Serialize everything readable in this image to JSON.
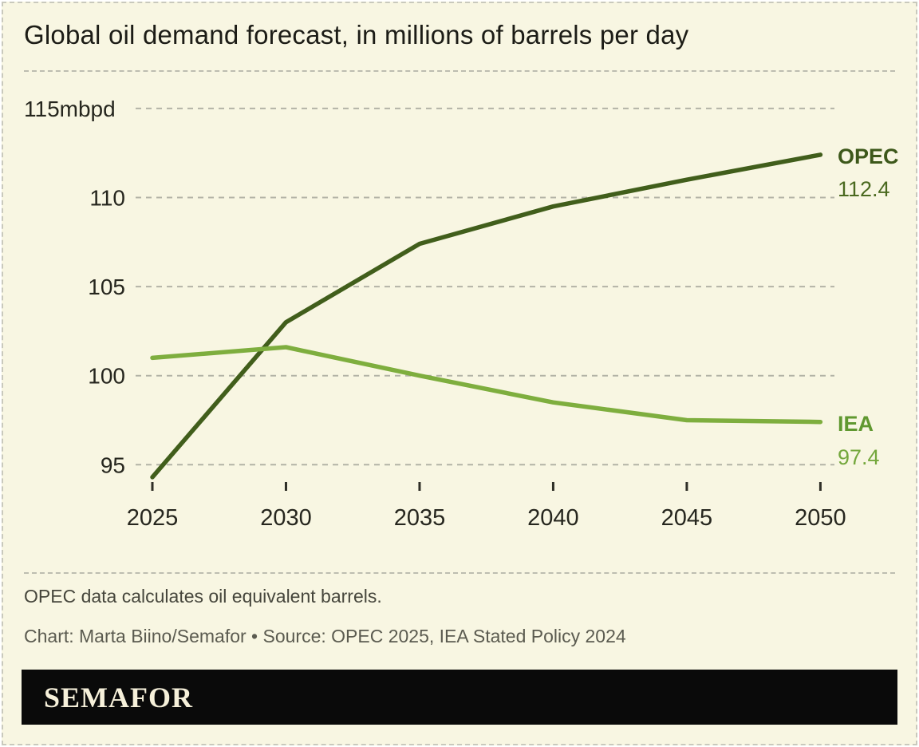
{
  "title": "Global oil demand forecast, in millions of barrels per day",
  "chart_data": {
    "type": "line",
    "title": "Global oil demand forecast, in millions of barrels per day",
    "xlabel": "",
    "ylabel": "mbpd",
    "x": [
      2025,
      2030,
      2035,
      2040,
      2045,
      2050
    ],
    "x_tick_labels": [
      "2025",
      "2030",
      "2035",
      "2040",
      "2045",
      "2050"
    ],
    "xlim": [
      2025,
      2050
    ],
    "ylim": [
      93.5,
      116.5
    ],
    "y_ticks": [
      {
        "value": 115,
        "label": "115mbpd"
      },
      {
        "value": 110,
        "label": "110"
      },
      {
        "value": 105,
        "label": "105"
      },
      {
        "value": 100,
        "label": "100"
      },
      {
        "value": 95,
        "label": "95"
      }
    ],
    "grid": "horizontal-dashed",
    "legend_position": "right-end-labels",
    "series": [
      {
        "name": "OPEC",
        "values": [
          94.3,
          103.0,
          107.4,
          109.5,
          111.0,
          112.4
        ],
        "color": "#415e1b",
        "end_label": "OPEC",
        "end_value": "112.4"
      },
      {
        "name": "IEA",
        "values": [
          101.0,
          101.6,
          100.0,
          98.5,
          97.5,
          97.4
        ],
        "color": "#7eae3e",
        "end_label": "IEA",
        "end_value": "97.4"
      }
    ]
  },
  "footnote": "OPEC data calculates oil equivalent barrels.",
  "credit": "Chart: Marta Biino/Semafor • Source: OPEC 2025, IEA Stated Policy 2024",
  "logo": {
    "text": "SEMAFOR"
  },
  "colors": {
    "background": "#f8f6e2",
    "border": "#c9c9bc",
    "title_text": "#1c1c16",
    "gridline": "#b3b3a6",
    "axis_text": "#26261e",
    "tick_mark": "#2f2f27",
    "opec_line": "#415e1b",
    "iea_line": "#7eae3e",
    "footnote_text": "#46463c",
    "credit_text": "#5b5b50",
    "logo_bg": "#0a0a0a",
    "logo_text": "#f6f0da"
  }
}
